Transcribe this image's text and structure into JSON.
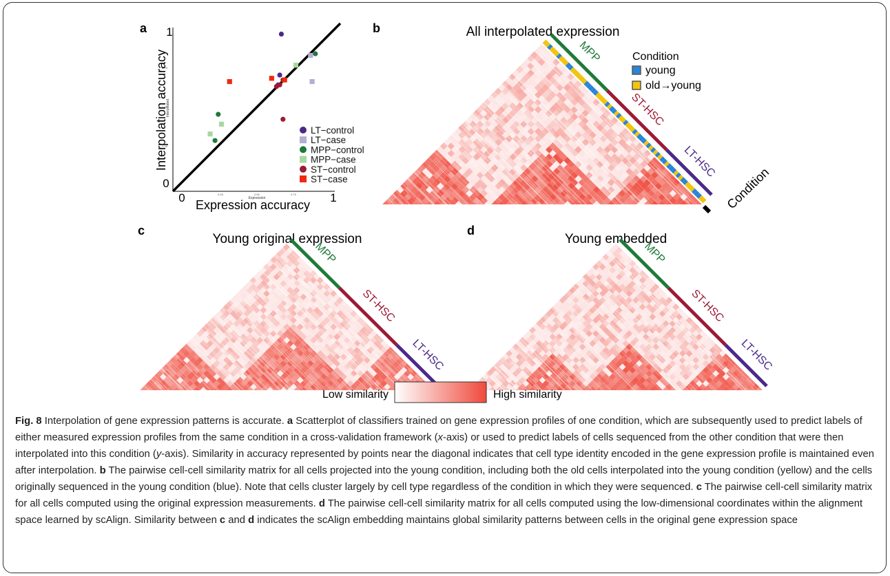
{
  "panels": {
    "a": {
      "letter": "a",
      "chart_data": {
        "type": "scatter",
        "xlabel": "Expression accuracy",
        "ylabel": "Interpolation accuracy",
        "xlabel_small": "Expression",
        "ylabel_small": "Interpolated",
        "xlim": [
          0,
          1
        ],
        "ylim": [
          0,
          1
        ],
        "x_ticks": [
          "0",
          "1"
        ],
        "y_ticks": [
          "0",
          "1"
        ],
        "x_ticks_small": [
          "0.25",
          "0.50",
          "0.75"
        ],
        "y_ticks_small": [
          "0.25",
          "0.50",
          "0.75"
        ],
        "diagonal": true,
        "series": [
          {
            "name": "LT−control",
            "color": "#4b2a8a",
            "marker": "circle",
            "points": [
              [
                0.67,
                0.96
              ],
              [
                0.66,
                0.71
              ],
              [
                0.65,
                0.65
              ]
            ]
          },
          {
            "name": "LT−case",
            "color": "#b3aed3",
            "marker": "square",
            "points": [
              [
                0.85,
                0.83
              ],
              [
                0.86,
                0.67
              ]
            ]
          },
          {
            "name": "MPP−control",
            "color": "#1f7a3a",
            "marker": "circle",
            "points": [
              [
                0.88,
                0.84
              ],
              [
                0.28,
                0.47
              ],
              [
                0.26,
                0.31
              ]
            ]
          },
          {
            "name": "MPP−case",
            "color": "#a8d8a0",
            "marker": "square",
            "points": [
              [
                0.76,
                0.77
              ],
              [
                0.3,
                0.41
              ],
              [
                0.23,
                0.35
              ]
            ]
          },
          {
            "name": "ST−control",
            "color": "#9c1a35",
            "marker": "circle",
            "points": [
              [
                0.68,
                0.44
              ],
              [
                0.64,
                0.64
              ],
              [
                0.68,
                0.68
              ],
              [
                0.66,
                0.65
              ]
            ]
          },
          {
            "name": "ST−case",
            "color": "#ef2a10",
            "marker": "square",
            "points": [
              [
                0.35,
                0.67
              ],
              [
                0.61,
                0.69
              ],
              [
                0.69,
                0.68
              ]
            ]
          }
        ]
      }
    },
    "b": {
      "letter": "b",
      "title": "All interpolated expression",
      "labels": [
        "MPP",
        "ST-HSC",
        "LT-HSC"
      ],
      "condition_label": "Condition"
    },
    "c": {
      "letter": "c",
      "title": "Young original expression",
      "labels": [
        "MPP",
        "ST-HSC",
        "LT-HSC"
      ]
    },
    "d": {
      "letter": "d",
      "title": "Young embedded",
      "labels": [
        "MPP",
        "ST-HSC",
        "LT-HSC"
      ]
    },
    "condition_legend": {
      "title": "Condition",
      "items": [
        {
          "label": "young",
          "fill": "#2b84d8"
        },
        {
          "label": "old→young",
          "fill": "#f1c40f"
        }
      ]
    },
    "similarity_legend": {
      "low": "Low similarity",
      "high": "High similarity",
      "low_color": "#ffffff",
      "high_color": "#ef4a3c"
    }
  },
  "colors": {
    "mpp": "#1f7a3a",
    "st_hsc": "#9c1a35",
    "lt_hsc": "#4b2a8a",
    "heat": "#ef4a3c"
  },
  "caption": {
    "fig_label": "Fig. 8",
    "title": "Interpolation of gene expression patterns is accurate.",
    "part_a_letter": "a",
    "part_a_1": "Scatterplot of classifiers trained on gene expression profiles of one condition, which are subsequently used to predict labels of either measured expression profiles from the same condition in a cross-validation framework (",
    "part_a_x": "x",
    "part_a_2": "-axis) or used to predict labels of cells sequenced from the other condition that were then interpolated into this condition (",
    "part_a_y": "y",
    "part_a_3": "-axis). Similarity in accuracy represented by points near the diagonal indicates that cell type identity encoded in the gene expression profile is maintained even after interpolation.",
    "part_b_letter": "b",
    "part_b": "The pairwise cell-cell similarity matrix for all cells projected into the young condition, including both the old cells interpolated into the young condition (yellow) and the cells originally sequenced in the young condition (blue). Note that cells cluster largely by cell type regardless of the condition in which they were sequenced.",
    "part_c_letter": "c",
    "part_c": "The pairwise cell-cell similarity matrix for all cells computed using the original expression measurements.",
    "part_d_letter": "d",
    "part_d": "The pairwise cell-cell similarity matrix for all cells computed using the low-dimensional coordinates within the alignment space learned by scAlign. Similarity between",
    "part_d_c": "c",
    "part_d_and": "and",
    "part_d_d": "d",
    "part_d_end": "indicates the scAlign embedding maintains global similarity patterns between cells in the original gene expression space"
  }
}
